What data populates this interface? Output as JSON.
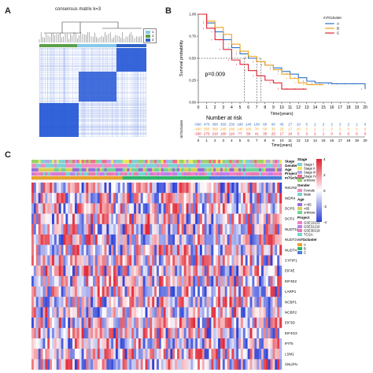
{
  "panels": {
    "a": "A",
    "b": "B",
    "c": "C"
  },
  "consensus": {
    "title": "consensus matrix k=3",
    "legend": [
      "1",
      "2",
      "3"
    ],
    "colors": {
      "c1": "#86c9ea",
      "c2": "#5b9f4a",
      "c3": "#2f62c8",
      "block": "#2457d6"
    }
  },
  "survival": {
    "legend_title": "m7Gcluster",
    "groups": [
      "A",
      "B",
      "C"
    ],
    "colors": {
      "A": "#2f6fc4",
      "B": "#f0a11a",
      "C": "#e0202f"
    },
    "pvalue": "p=0.009",
    "ylabel": "Survival probability",
    "xlabel": "Time(years)",
    "risk_title": "Number at risk",
    "risk_ylabel": "m7Gcluster",
    "risk_xlabel": "Time(years)"
  },
  "chart_data": [
    {
      "type": "line",
      "title": "",
      "xlabel": "Time(years)",
      "ylabel": "Survival probability",
      "xlim": [
        0,
        20
      ],
      "ylim": [
        0,
        1
      ],
      "xticks": [
        "0",
        "1",
        "2",
        "3",
        "4",
        "5",
        "6",
        "7",
        "8",
        "9",
        "10",
        "11",
        "12",
        "13",
        "14",
        "15",
        "16",
        "17",
        "18",
        "19",
        "20"
      ],
      "yticks": [
        "0.00",
        "0.25",
        "0.50",
        "0.75",
        "1.00"
      ],
      "series": [
        {
          "name": "A",
          "x": [
            0,
            1,
            2,
            3,
            4,
            5,
            6,
            7,
            8,
            9,
            10,
            11,
            12,
            13,
            14,
            15,
            16,
            17,
            18,
            19,
            20
          ],
          "y": [
            1.0,
            0.9,
            0.8,
            0.71,
            0.62,
            0.55,
            0.5,
            0.46,
            0.42,
            0.39,
            0.35,
            0.32,
            0.28,
            0.24,
            0.22,
            0.22,
            0.21,
            0.21,
            0.21,
            0.21,
            0.15
          ]
        },
        {
          "name": "B",
          "x": [
            0,
            1,
            2,
            3,
            4,
            5,
            6,
            7,
            8,
            9,
            10,
            11,
            12,
            13,
            14,
            15
          ],
          "y": [
            1.0,
            0.92,
            0.85,
            0.77,
            0.66,
            0.58,
            0.52,
            0.46,
            0.42,
            0.37,
            0.32,
            0.27,
            0.22,
            0.2,
            0.2,
            0.2
          ]
        },
        {
          "name": "C",
          "x": [
            0,
            1,
            2,
            3,
            4,
            5,
            6,
            7,
            8,
            9,
            10,
            11,
            12,
            13
          ],
          "y": [
            1.0,
            0.84,
            0.71,
            0.6,
            0.48,
            0.43,
            0.36,
            0.3,
            0.25,
            0.22,
            0.15,
            0.15,
            0.15,
            0.15
          ]
        }
      ],
      "annotations": [
        "p=0.009"
      ],
      "median_lines_x": [
        5.5,
        7,
        7.5
      ]
    },
    {
      "type": "table",
      "title": "Number at risk",
      "rows": [
        "A",
        "B",
        "C"
      ],
      "x": [
        0,
        1,
        2,
        3,
        4,
        5,
        6,
        7,
        8,
        9,
        10,
        11,
        12,
        13,
        14,
        15,
        16,
        17,
        18,
        19,
        20
      ],
      "values": [
        [
          560,
          470,
          390,
          300,
          230,
          180,
          140,
          100,
          80,
          60,
          45,
          17,
          10,
          5,
          2,
          2,
          2,
          2,
          2,
          1,
          0
        ],
        [
          430,
          360,
          300,
          240,
          180,
          140,
          100,
          70,
          50,
          35,
          25,
          17,
          10,
          5,
          2,
          2,
          2,
          2,
          0,
          0,
          0
        ],
        [
          330,
          270,
          210,
          160,
          110,
          77,
          58,
          41,
          35,
          25,
          17,
          10,
          5,
          3,
          2,
          1,
          0,
          0,
          0,
          0,
          0
        ]
      ],
      "xlabel": "Time(years)"
    },
    {
      "type": "heatmap",
      "title": "",
      "rows": [
        "NSUN2",
        "WDR4",
        "DCPS",
        "DCP2",
        "NUDT11",
        "NUDT3",
        "NUDT4",
        "CYFIP1",
        "EIF4E",
        "EIF4E2",
        "LARP1",
        "NCBP1",
        "NCBP2",
        "EIF3D",
        "EIF4G3",
        "IFIT5",
        "LSM1",
        "SNUPN"
      ],
      "color_scale": {
        "low": "#2b3fd6",
        "mid": "#ffffff",
        "high": "#e0202f"
      },
      "scale_ticks": [
        "4",
        "2",
        "0",
        "-2",
        "-4"
      ],
      "annotation_tracks": [
        "Stage",
        "Gender",
        "Age",
        "Project",
        "m7Gcluster"
      ],
      "legends": [
        {
          "title": "Stage",
          "items": [
            "Stage I",
            "Stage II",
            "Stage III",
            "Stage IV",
            "unknow"
          ],
          "colors": [
            "#7fd1cf",
            "#e8e85a",
            "#b7a3e6",
            "#f46a8a",
            "#9bd06a"
          ]
        },
        {
          "title": "Gender",
          "items": [
            "Female",
            "Male"
          ],
          "colors": [
            "#f08bc1",
            "#7ad1d4"
          ]
        },
        {
          "title": "Age",
          "items": [
            "<=65",
            ">65",
            "unknow"
          ],
          "colors": [
            "#9b6fd8",
            "#d7cf55",
            "#6fd39a"
          ]
        },
        {
          "title": "Project",
          "items": [
            "GSE13213",
            "GSE31210",
            "GSE30219",
            "TCGA"
          ],
          "colors": [
            "#f07fc8",
            "#c17de8",
            "#e67ab1",
            "#73d4cf"
          ]
        },
        {
          "title": "m7Gcluster",
          "items": [
            "A",
            "B",
            "C"
          ],
          "colors": [
            "#e6a32e",
            "#2fb56a",
            "#4a7bd6"
          ]
        }
      ]
    }
  ]
}
